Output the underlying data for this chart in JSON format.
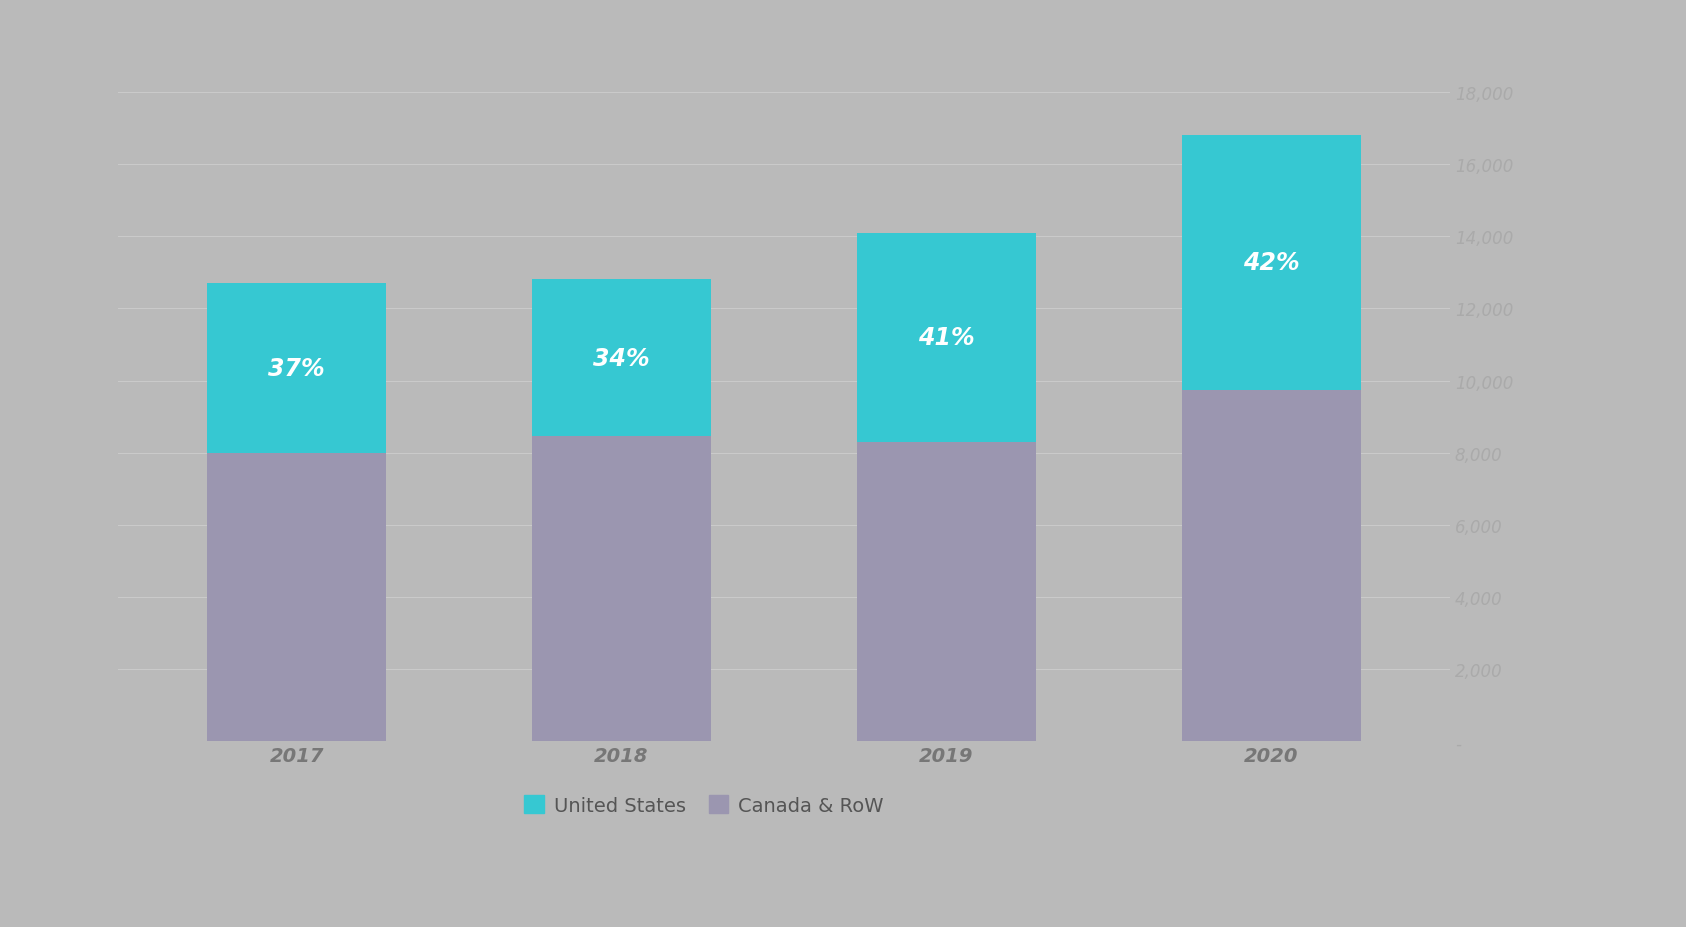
{
  "years": [
    "2017",
    "2018",
    "2019",
    "2020"
  ],
  "canada_row": [
    8000,
    8450,
    8300,
    9750
  ],
  "us": [
    4700,
    4350,
    5800,
    7050
  ],
  "us_pct": [
    "37%",
    "34%",
    "41%",
    "42%"
  ],
  "color_us": "#36C8D2",
  "color_canada": "#9B96B0",
  "background_color": "#BABABA",
  "text_color_white": "#FFFFFF",
  "ytick_color": "#AAAAAA",
  "xtick_color": "#777777",
  "grid_color": "#CACACA",
  "ylim": [
    0,
    18000
  ],
  "yticks": [
    0,
    2000,
    4000,
    6000,
    8000,
    10000,
    12000,
    14000,
    16000,
    18000
  ],
  "ytick_labels": [
    "-",
    "2,000",
    "4,000",
    "6,000",
    "8,000",
    "10,000",
    "12,000",
    "14,000",
    "16,000",
    "18,000"
  ],
  "legend_us": "United States",
  "legend_canada": "Canada & RoW",
  "bar_width": 0.55,
  "pct_fontsize": 17,
  "tick_fontsize": 12,
  "legend_fontsize": 14
}
